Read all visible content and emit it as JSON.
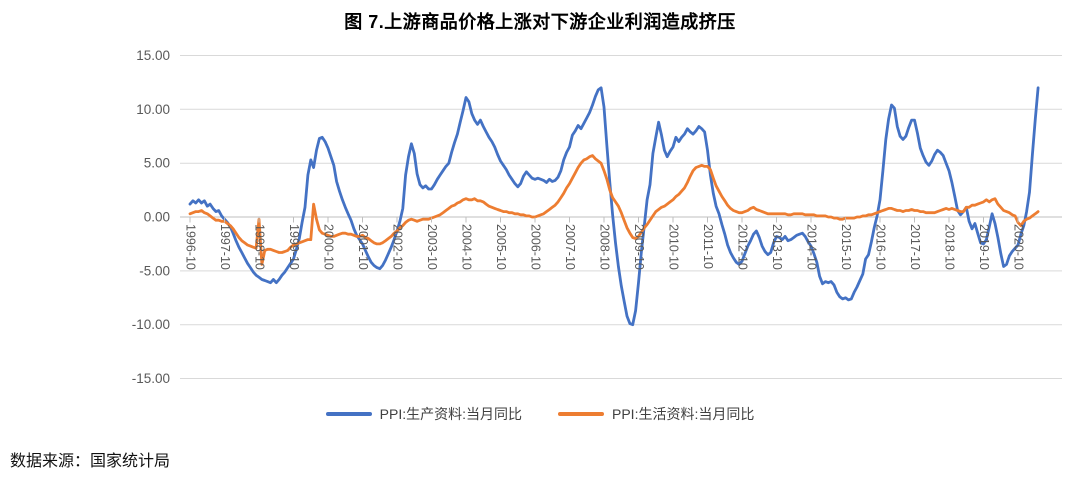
{
  "title": "图 7.上游商品价格上涨对下游企业利润造成挤压",
  "source_note": "数据来源：国家统计局",
  "legend": [
    {
      "label": "PPI:生产资料:当月同比",
      "color": "#4472C4"
    },
    {
      "label": "PPI:生活资料:当月同比",
      "color": "#ED7D31"
    }
  ],
  "axes": {
    "y_ticks": [
      "15.00",
      "10.00",
      "5.00",
      "0.00",
      "-5.00",
      "-10.00",
      "-15.00"
    ],
    "x_ticks": [
      "1996-10",
      "1997-10",
      "1998-10",
      "1999-10",
      "2000-10",
      "2001-10",
      "2002-10",
      "2003-10",
      "2004-10",
      "2005-10",
      "2006-10",
      "2007-10",
      "2008-10",
      "2009-10",
      "2010-10",
      "2011-10",
      "2012-10",
      "2013-10",
      "2014-10",
      "2015-10",
      "2016-10",
      "2017-10",
      "2018-10",
      "2019-10",
      "2020-10"
    ]
  },
  "colors": {
    "grid": "#D9D9D9",
    "axis_zero": "#BFBFBF",
    "tick_label": "#595959"
  },
  "chart_data": {
    "type": "line",
    "title": "图 7.上游商品价格上涨对下游企业利润造成挤压",
    "x_unit": "month",
    "x_range": [
      "1996-10",
      "2021-05"
    ],
    "ylim": [
      -15,
      15
    ],
    "y_step": 5,
    "grid": "horizontal",
    "legend_position": "bottom",
    "series": [
      {
        "name": "PPI:生产资料:当月同比",
        "color": "#4472C4",
        "start": "1996-10",
        "monthly_values": [
          1.2,
          1.5,
          1.3,
          1.6,
          1.3,
          1.5,
          1.0,
          1.2,
          0.8,
          0.5,
          0.6,
          0.1,
          -0.2,
          -0.5,
          -0.9,
          -1.5,
          -2.2,
          -2.8,
          -3.3,
          -3.8,
          -4.3,
          -4.7,
          -5.1,
          -5.4,
          -5.6,
          -5.8,
          -5.9,
          -6.0,
          -6.1,
          -5.8,
          -6.1,
          -5.8,
          -5.4,
          -5.1,
          -4.7,
          -4.3,
          -3.9,
          -3.0,
          -2.0,
          -0.5,
          0.9,
          3.9,
          5.3,
          4.6,
          6.2,
          7.3,
          7.4,
          7.0,
          6.4,
          5.6,
          4.8,
          3.3,
          2.4,
          1.6,
          0.9,
          0.3,
          -0.3,
          -1.1,
          -1.7,
          -2.1,
          -2.5,
          -3.1,
          -3.7,
          -4.2,
          -4.5,
          -4.7,
          -4.8,
          -4.5,
          -4.0,
          -3.4,
          -2.8,
          -2.1,
          -1.3,
          -0.4,
          0.8,
          3.9,
          5.6,
          6.8,
          5.9,
          4.0,
          3.0,
          2.7,
          2.9,
          2.6,
          2.6,
          3.0,
          3.5,
          3.9,
          4.3,
          4.7,
          5.0,
          6.0,
          6.9,
          7.7,
          8.8,
          9.9,
          11.1,
          10.7,
          9.6,
          9.0,
          8.6,
          9.0,
          8.4,
          7.9,
          7.4,
          7.0,
          6.5,
          5.8,
          5.2,
          4.8,
          4.4,
          3.9,
          3.5,
          3.1,
          2.8,
          3.1,
          3.8,
          4.2,
          3.9,
          3.6,
          3.5,
          3.6,
          3.5,
          3.4,
          3.2,
          3.5,
          3.3,
          3.4,
          3.7,
          4.3,
          5.3,
          6.0,
          6.5,
          7.6,
          8.0,
          8.5,
          8.2,
          8.7,
          9.2,
          9.7,
          10.4,
          11.2,
          11.8,
          12.0,
          10.2,
          6.6,
          3.2,
          0.2,
          -2.4,
          -4.6,
          -6.4,
          -7.8,
          -9.2,
          -9.9,
          -10.0,
          -8.7,
          -6.1,
          -3.2,
          -0.8,
          1.6,
          3.0,
          5.9,
          7.4,
          8.8,
          7.6,
          6.2,
          5.6,
          6.1,
          6.5,
          7.4,
          7.0,
          7.4,
          7.7,
          8.2,
          7.9,
          7.7,
          8.0,
          8.4,
          8.2,
          7.9,
          6.2,
          3.9,
          2.2,
          1.0,
          0.3,
          -0.7,
          -1.6,
          -2.6,
          -3.3,
          -3.8,
          -4.2,
          -4.4,
          -4.1,
          -3.4,
          -2.7,
          -2.2,
          -1.6,
          -1.3,
          -1.9,
          -2.7,
          -3.2,
          -3.5,
          -3.3,
          -2.4,
          -1.8,
          -1.9,
          -2.1,
          -1.8,
          -2.2,
          -2.1,
          -1.9,
          -1.7,
          -1.6,
          -1.5,
          -1.8,
          -2.3,
          -2.7,
          -3.4,
          -4.2,
          -5.5,
          -6.2,
          -6.0,
          -6.1,
          -6.0,
          -6.3,
          -7.0,
          -7.4,
          -7.6,
          -7.5,
          -7.7,
          -7.6,
          -7.0,
          -6.5,
          -5.9,
          -5.3,
          -3.9,
          -3.5,
          -2.3,
          -1.0,
          0.1,
          1.6,
          4.3,
          7.2,
          9.1,
          10.4,
          10.1,
          8.4,
          7.5,
          7.2,
          7.5,
          8.3,
          9.0,
          9.0,
          7.8,
          6.4,
          5.7,
          5.1,
          4.8,
          5.2,
          5.8,
          6.2,
          6.0,
          5.7,
          5.0,
          4.3,
          3.2,
          1.9,
          0.6,
          0.2,
          0.5,
          0.9,
          -0.4,
          -1.1,
          -0.6,
          -1.5,
          -2.4,
          -2.5,
          -2.1,
          -0.9,
          0.3,
          -0.6,
          -1.9,
          -3.4,
          -4.6,
          -4.4,
          -3.6,
          -3.2,
          -2.9,
          -2.6,
          -1.6,
          -0.8,
          0.5,
          2.3,
          5.8,
          9.1,
          12.0
        ]
      },
      {
        "name": "PPI:生活资料:当月同比",
        "color": "#ED7D31",
        "start": "1996-10",
        "monthly_values": [
          0.3,
          0.4,
          0.5,
          0.5,
          0.6,
          0.4,
          0.3,
          0.1,
          -0.1,
          -0.3,
          -0.3,
          -0.4,
          -0.4,
          -0.6,
          -0.8,
          -1.1,
          -1.5,
          -1.9,
          -2.2,
          -2.4,
          -2.6,
          -2.7,
          -2.8,
          -2.9,
          -0.2,
          -4.4,
          -3.1,
          -3.0,
          -3.0,
          -3.1,
          -3.2,
          -3.3,
          -3.3,
          -3.2,
          -3.1,
          -2.8,
          -2.6,
          -2.5,
          -2.4,
          -2.3,
          -2.2,
          -2.1,
          -2.1,
          1.2,
          -0.2,
          -1.2,
          -1.5,
          -1.6,
          -1.7,
          -1.8,
          -1.8,
          -1.7,
          -1.6,
          -1.5,
          -1.5,
          -1.6,
          -1.6,
          -1.7,
          -1.8,
          -1.8,
          -1.7,
          -1.9,
          -2.0,
          -2.2,
          -2.4,
          -2.5,
          -2.5,
          -2.4,
          -2.2,
          -2.0,
          -1.8,
          -1.5,
          -1.3,
          -1.0,
          -0.8,
          -0.5,
          -0.3,
          -0.2,
          -0.3,
          -0.4,
          -0.3,
          -0.2,
          -0.2,
          -0.2,
          -0.1,
          0.0,
          0.1,
          0.2,
          0.4,
          0.6,
          0.8,
          1.0,
          1.1,
          1.3,
          1.4,
          1.6,
          1.7,
          1.6,
          1.6,
          1.7,
          1.5,
          1.5,
          1.4,
          1.2,
          1.0,
          0.9,
          0.8,
          0.7,
          0.6,
          0.5,
          0.5,
          0.4,
          0.4,
          0.3,
          0.3,
          0.2,
          0.2,
          0.1,
          0.1,
          0.0,
          0.0,
          0.1,
          0.2,
          0.3,
          0.5,
          0.7,
          0.9,
          1.1,
          1.4,
          1.8,
          2.2,
          2.7,
          3.1,
          3.6,
          4.1,
          4.6,
          5.0,
          5.3,
          5.4,
          5.6,
          5.7,
          5.4,
          5.2,
          5.0,
          4.3,
          3.5,
          2.5,
          1.8,
          1.4,
          1.0,
          0.4,
          -0.3,
          -1.0,
          -1.5,
          -1.9,
          -2.0,
          -1.8,
          -1.4,
          -1.0,
          -0.7,
          -0.3,
          0.1,
          0.5,
          0.7,
          0.9,
          1.0,
          1.2,
          1.4,
          1.6,
          1.9,
          2.1,
          2.4,
          2.7,
          3.2,
          3.8,
          4.3,
          4.6,
          4.7,
          4.8,
          4.7,
          4.7,
          4.4,
          3.6,
          2.9,
          2.4,
          1.9,
          1.5,
          1.1,
          0.8,
          0.6,
          0.5,
          0.4,
          0.4,
          0.5,
          0.6,
          0.8,
          0.9,
          0.7,
          0.6,
          0.5,
          0.4,
          0.3,
          0.3,
          0.3,
          0.3,
          0.3,
          0.3,
          0.3,
          0.2,
          0.2,
          0.3,
          0.3,
          0.3,
          0.3,
          0.2,
          0.2,
          0.2,
          0.2,
          0.1,
          0.1,
          0.1,
          0.1,
          0.0,
          0.0,
          -0.1,
          -0.1,
          -0.2,
          -0.2,
          -0.1,
          -0.1,
          -0.1,
          -0.1,
          0.0,
          0.0,
          0.1,
          0.1,
          0.2,
          0.2,
          0.3,
          0.4,
          0.5,
          0.6,
          0.7,
          0.8,
          0.8,
          0.7,
          0.6,
          0.6,
          0.5,
          0.6,
          0.6,
          0.7,
          0.6,
          0.6,
          0.5,
          0.5,
          0.4,
          0.4,
          0.4,
          0.4,
          0.5,
          0.6,
          0.7,
          0.8,
          0.7,
          0.8,
          0.7,
          0.6,
          0.5,
          0.5,
          0.9,
          0.9,
          1.1,
          1.1,
          1.2,
          1.3,
          1.4,
          1.6,
          1.4,
          1.6,
          1.7,
          1.2,
          0.9,
          0.6,
          0.5,
          0.4,
          0.2,
          0.1,
          -0.5,
          -0.8,
          -0.4,
          -0.2,
          -0.1,
          0.1,
          0.3,
          0.5
        ]
      }
    ]
  }
}
